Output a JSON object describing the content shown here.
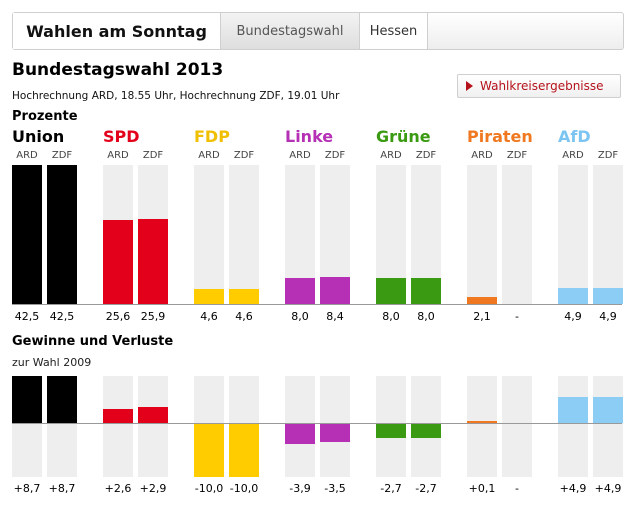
{
  "tabs": [
    {
      "label": "Wahlen am Sonntag"
    },
    {
      "label": "Bundestagswahl"
    },
    {
      "label": "Hessen"
    }
  ],
  "title": "Bundestagswahl 2013",
  "subtitle": "Hochrechnung ARD, 18.55 Uhr, Hochrechnung ZDF, 19.01 Uhr",
  "button_label": "Wahlkreisergebnisse",
  "section1_label": "Prozente",
  "section2_label": "Gewinne und Verluste",
  "section2_sublabel": "zur Wahl 2009",
  "sources": [
    "ARD",
    "ZDF"
  ],
  "parties": [
    {
      "name": "Union",
      "color": "#000000",
      "name_color": "#000000",
      "pct": [
        "42,5",
        "42,5"
      ],
      "chg": [
        "+8,7",
        "+8,7"
      ]
    },
    {
      "name": "SPD",
      "color": "#e3001b",
      "name_color": "#e3001b",
      "pct": [
        "25,6",
        "25,9"
      ],
      "chg": [
        "+2,6",
        "+2,9"
      ]
    },
    {
      "name": "FDP",
      "color": "#ffcc00",
      "name_color": "#f0c000",
      "pct": [
        "4,6",
        "4,6"
      ],
      "chg": [
        "-10,0",
        "-10,0"
      ]
    },
    {
      "name": "Linke",
      "color": "#b630b6",
      "name_color": "#b630b6",
      "pct": [
        "8,0",
        "8,4"
      ],
      "chg": [
        "-3,9",
        "-3,5"
      ]
    },
    {
      "name": "Grüne",
      "color": "#3a9a12",
      "name_color": "#3a9a12",
      "pct": [
        "8,0",
        "8,0"
      ],
      "chg": [
        "-2,7",
        "-2,7"
      ]
    },
    {
      "name": "Piraten",
      "color": "#f07820",
      "name_color": "#f07820",
      "pct": [
        "2,1",
        "-"
      ],
      "chg": [
        "+0,1",
        "-"
      ]
    },
    {
      "name": "AfD",
      "color": "#8ccdf5",
      "name_color": "#7cc4f2",
      "pct": [
        "4,9",
        "4,9"
      ],
      "chg": [
        "+4,9",
        "+4,9"
      ]
    }
  ],
  "chart_data": [
    {
      "type": "bar",
      "title": "Prozente",
      "categories": [
        "Union",
        "SPD",
        "FDP",
        "Linke",
        "Grüne",
        "Piraten",
        "AfD"
      ],
      "series": [
        {
          "name": "ARD",
          "values": [
            42.5,
            25.6,
            4.6,
            8.0,
            8.0,
            2.1,
            4.9
          ]
        },
        {
          "name": "ZDF",
          "values": [
            42.5,
            25.9,
            4.6,
            8.4,
            8.0,
            null,
            4.9
          ]
        }
      ],
      "ylim": [
        0,
        42.5
      ]
    },
    {
      "type": "bar",
      "title": "Gewinne und Verluste",
      "subtitle": "zur Wahl 2009",
      "categories": [
        "Union",
        "SPD",
        "FDP",
        "Linke",
        "Grüne",
        "Piraten",
        "AfD"
      ],
      "series": [
        {
          "name": "ARD",
          "values": [
            8.7,
            2.6,
            -10.0,
            -3.9,
            -2.7,
            0.1,
            4.9
          ]
        },
        {
          "name": "ZDF",
          "values": [
            8.7,
            2.9,
            -10.0,
            -3.5,
            -2.7,
            null,
            4.9
          ]
        }
      ]
    }
  ]
}
